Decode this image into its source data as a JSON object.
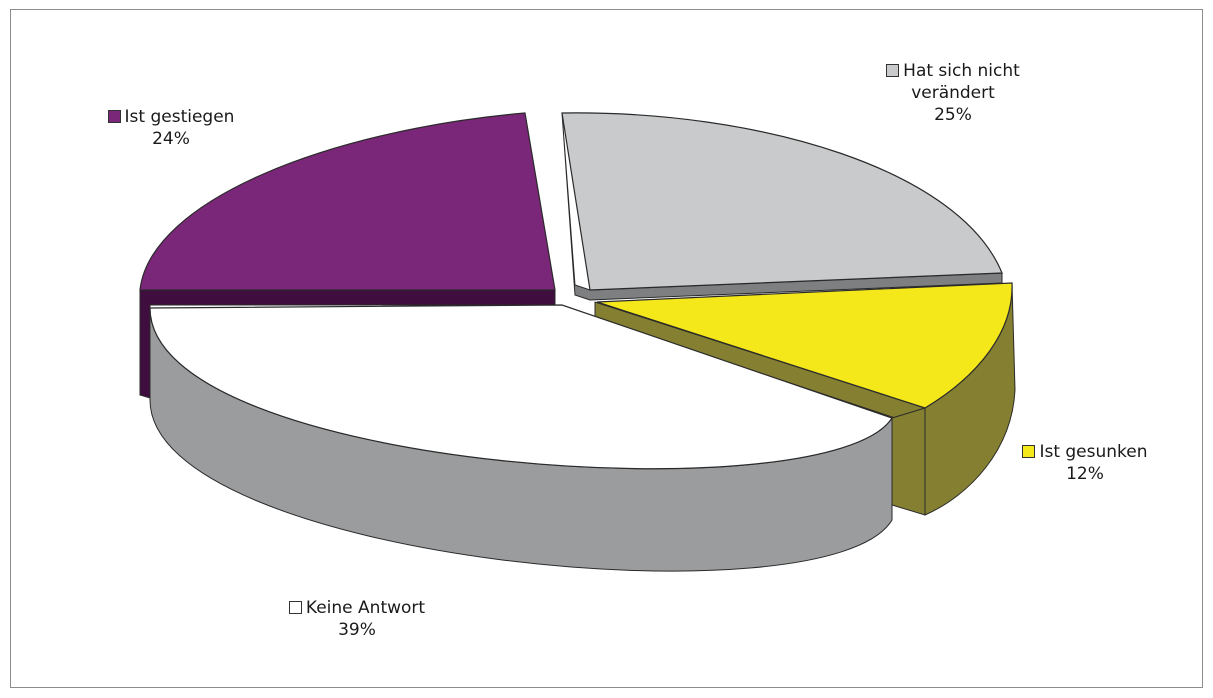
{
  "chart_data": {
    "type": "pie",
    "title": "",
    "slices": [
      {
        "label": "Keine Antwort",
        "value": 39,
        "value_label": "39%",
        "color": "#ffffff",
        "side_color": "#9a9c9e"
      },
      {
        "label": "Ist gestiegen",
        "value": 24,
        "value_label": "24%",
        "color": "#7b2779",
        "side_color": "#3f0e3e"
      },
      {
        "label": "Hat sich nicht verändert",
        "label_lines": [
          "Hat sich nicht",
          "verändert"
        ],
        "value": 25,
        "value_label": "25%",
        "color": "#c9cacb",
        "side_color": "#7d7f80"
      },
      {
        "label": "Ist gesunken",
        "value": 12,
        "value_label": "12%",
        "color": "#f4e71a",
        "side_color": "#847f31"
      }
    ]
  }
}
